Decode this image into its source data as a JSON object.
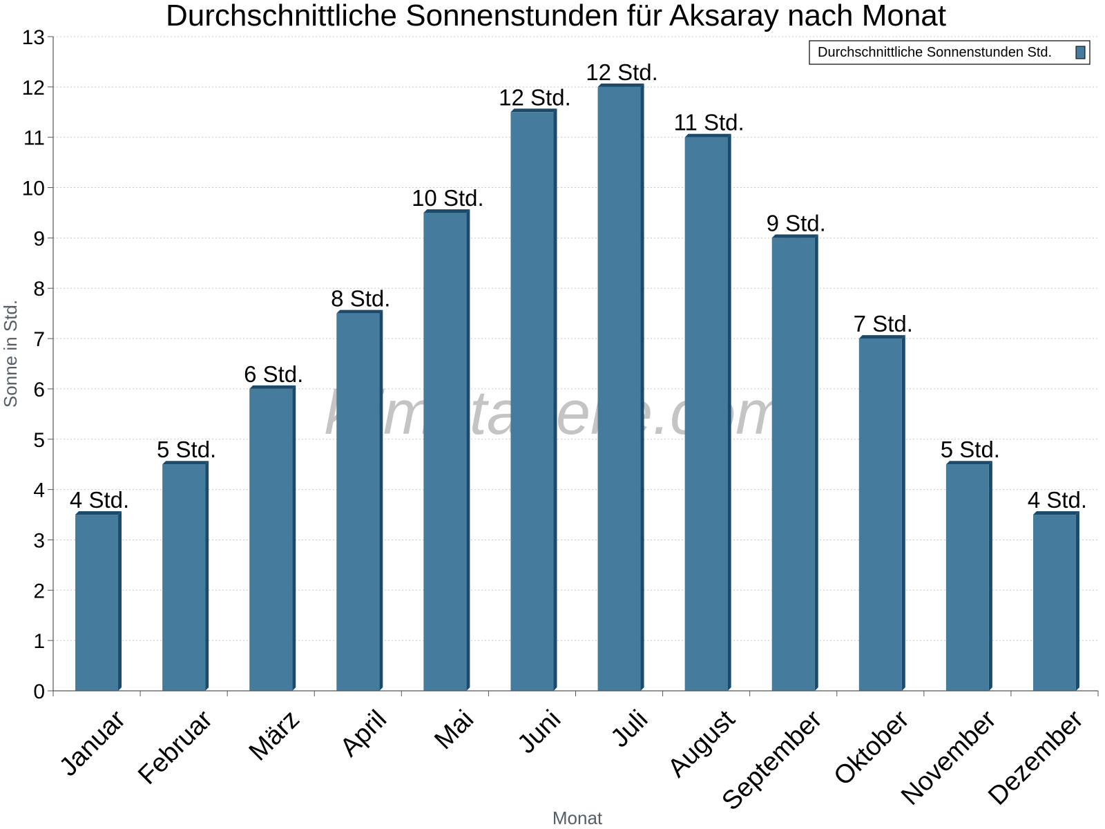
{
  "chart_data": {
    "type": "bar",
    "title": "Durchschnittliche Sonnenstunden für Aksaray nach Monat",
    "xlabel": "Monat",
    "ylabel": "Sonne in Std.",
    "ylim": [
      0,
      13
    ],
    "yticks": [
      0,
      1,
      2,
      3,
      4,
      5,
      6,
      7,
      8,
      9,
      10,
      11,
      12,
      13
    ],
    "grid": true,
    "legend_position": "top-right",
    "categories": [
      "Januar",
      "Februar",
      "März",
      "April",
      "Mai",
      "Juni",
      "Juli",
      "August",
      "September",
      "Oktober",
      "November",
      "Dezember"
    ],
    "series": [
      {
        "name": "Durchschnittliche Sonnenstunden Std.",
        "values": [
          3.5,
          4.5,
          6.0,
          7.5,
          9.5,
          11.5,
          12.0,
          11.0,
          9.0,
          7.0,
          4.5,
          3.5
        ],
        "labels": [
          "4 Std.",
          "5 Std.",
          "6 Std.",
          "8 Std.",
          "10 Std.",
          "12 Std.",
          "12 Std.",
          "11 Std.",
          "9 Std.",
          "7 Std.",
          "5 Std.",
          "4 Std."
        ],
        "color": "#457b9d",
        "edge_color": "#1b4a6b"
      }
    ],
    "watermark": "klimatabelle.com"
  }
}
